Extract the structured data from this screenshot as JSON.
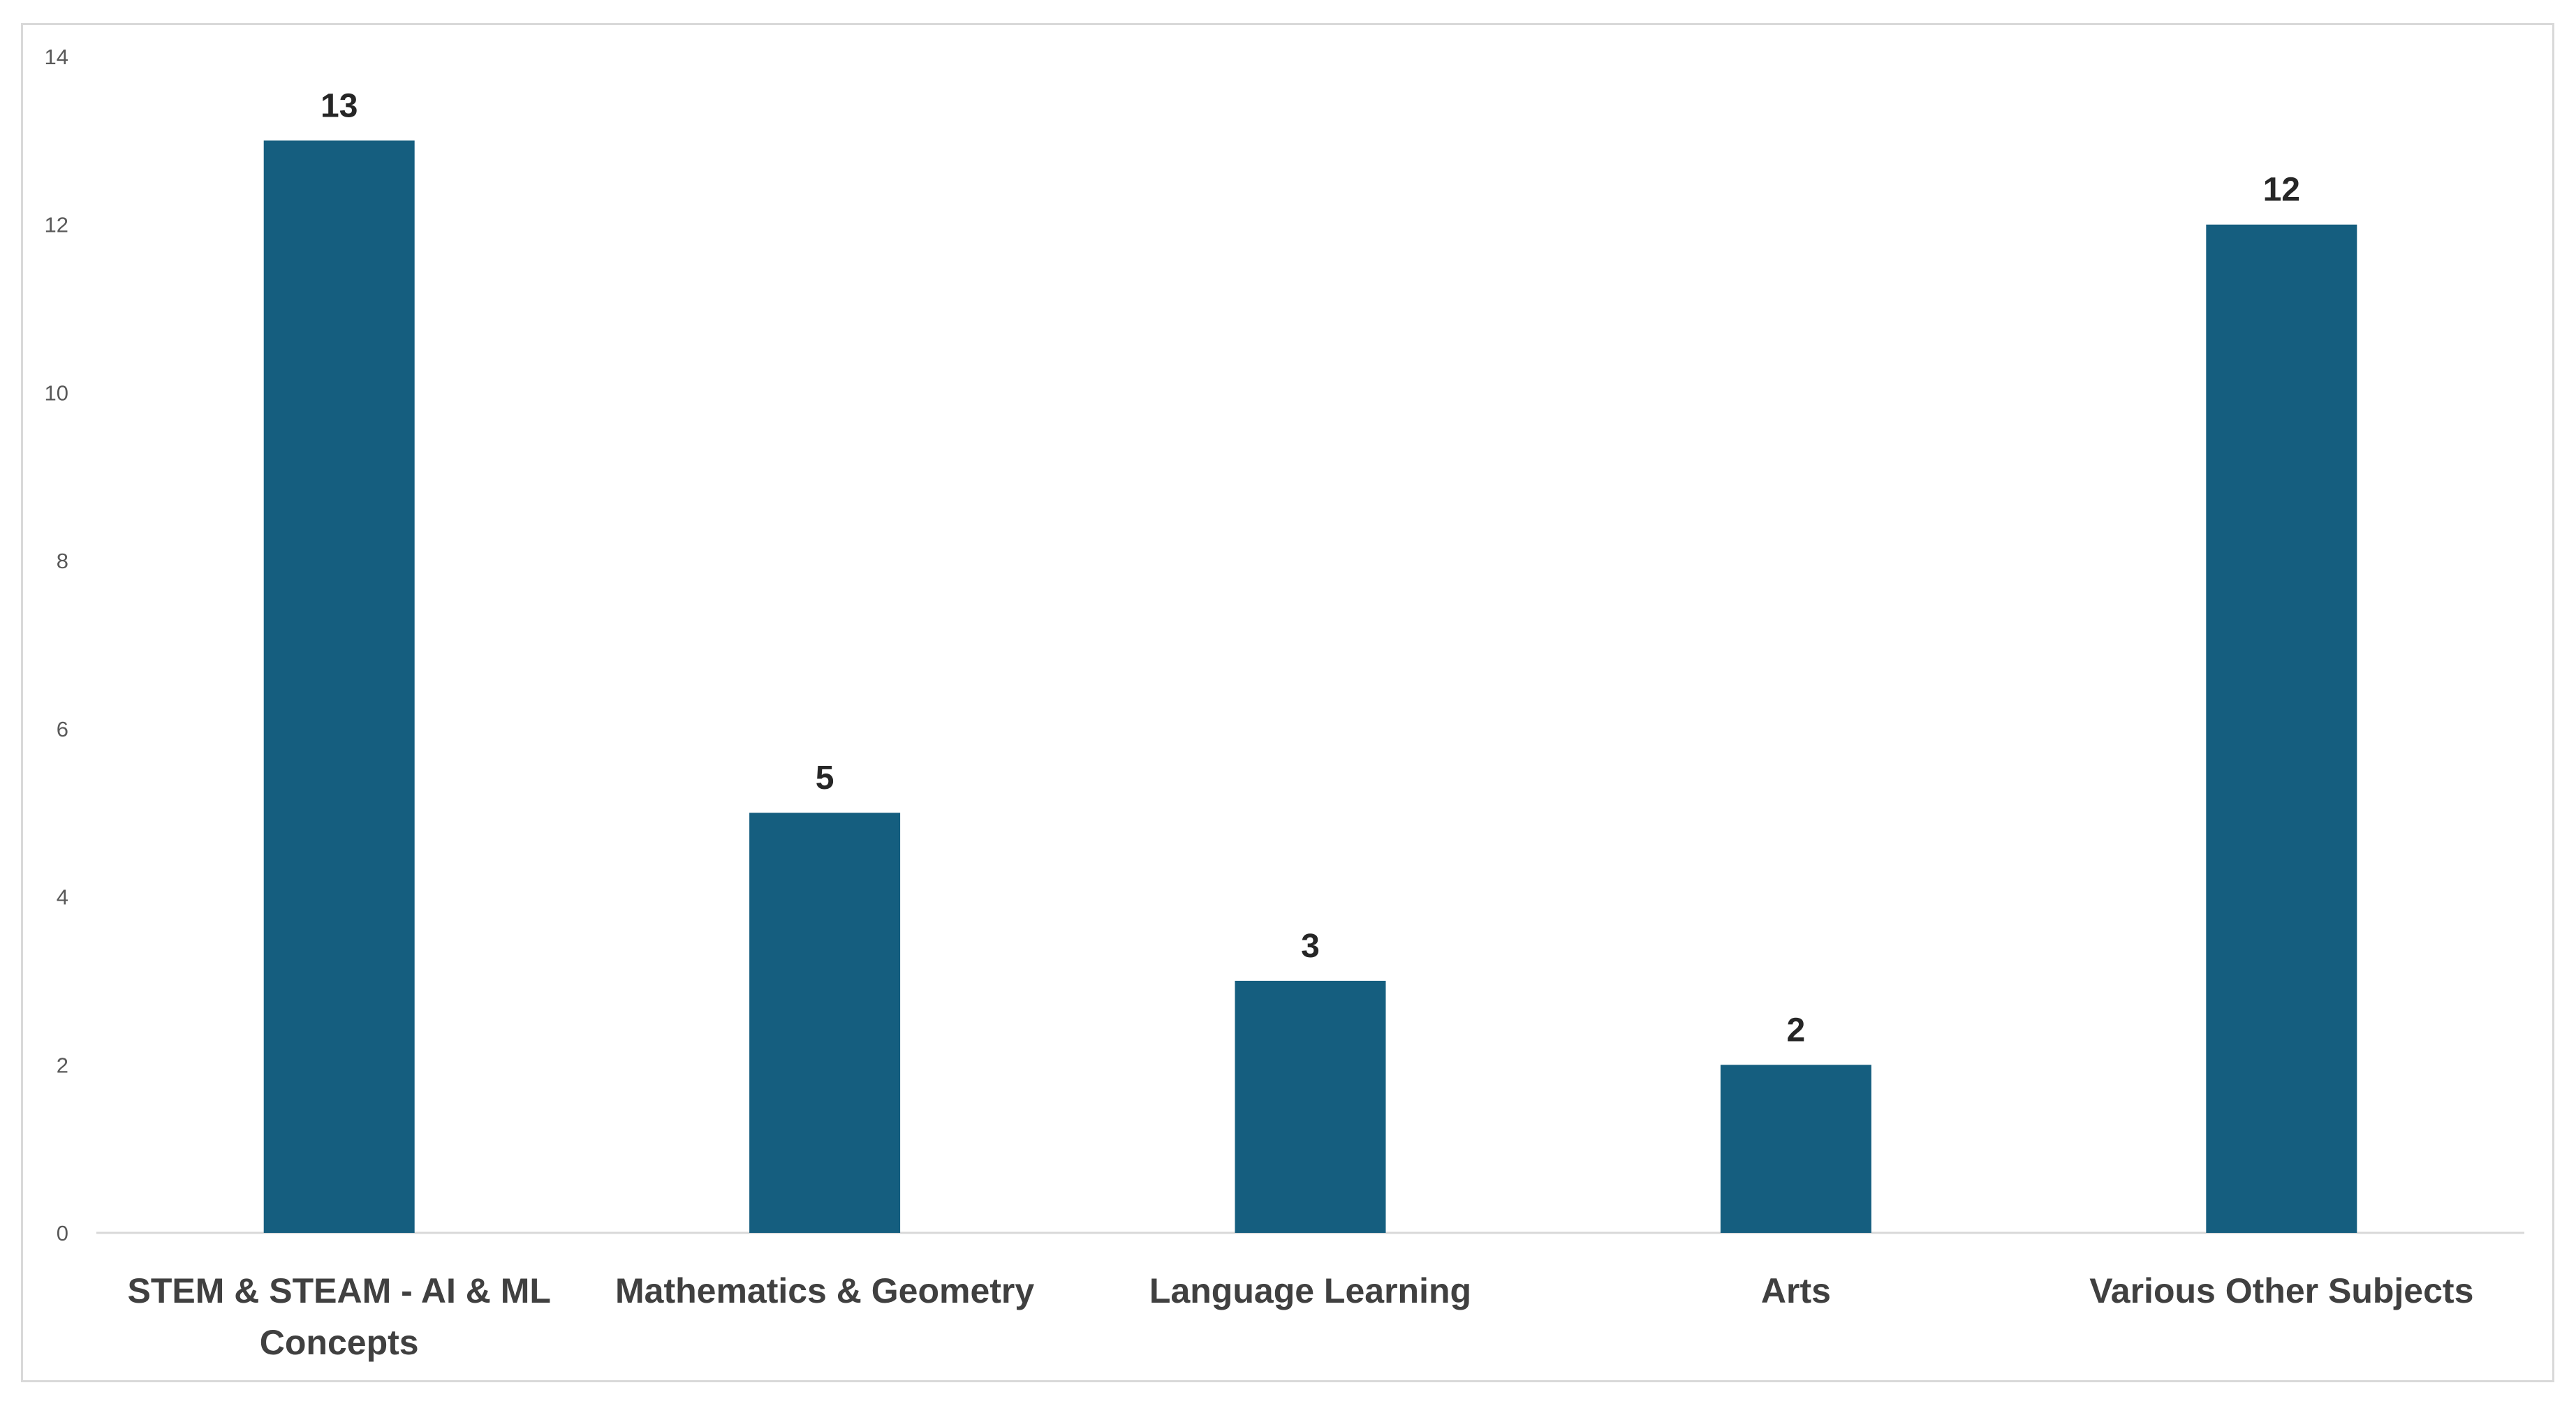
{
  "chart_data": {
    "type": "bar",
    "title": "",
    "xlabel": "",
    "ylabel": "",
    "categories": [
      [
        "STEM & STEAM - AI & ML",
        "Concepts"
      ],
      [
        "Mathematics & Geometry"
      ],
      [
        "Language Learning"
      ],
      [
        "Arts"
      ],
      [
        "Various Other Subjects"
      ]
    ],
    "values": [
      13,
      5,
      3,
      2,
      12
    ],
    "data_labels": [
      "13",
      "5",
      "3",
      "2",
      "12"
    ],
    "ylim": [
      0,
      14
    ],
    "yticks": [
      0,
      2,
      4,
      6,
      8,
      10,
      12,
      14
    ],
    "ytick_labels": [
      "0",
      "2",
      "4",
      "6",
      "8",
      "10",
      "12",
      "14"
    ],
    "grid": false,
    "legend": "none",
    "bar_color": "#155e7f",
    "axis_color": "#d9d9d9"
  }
}
